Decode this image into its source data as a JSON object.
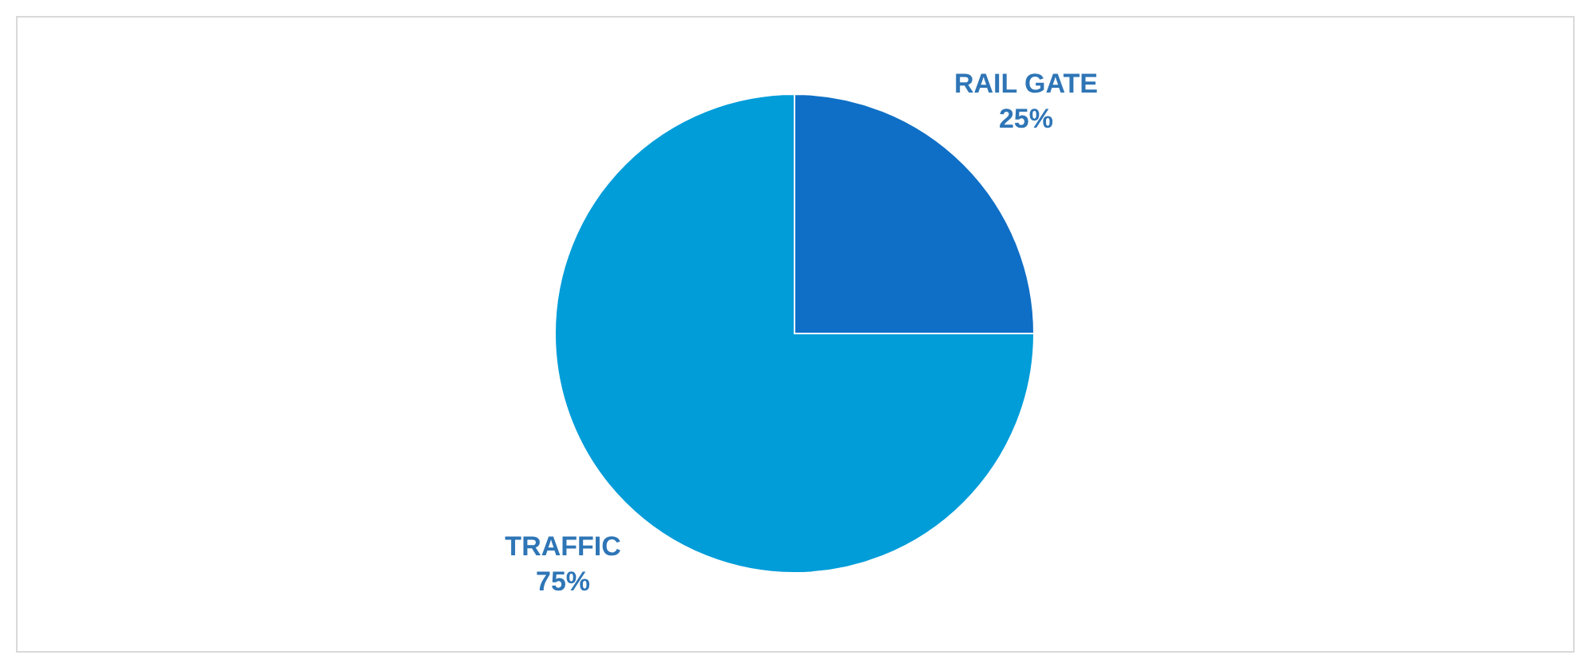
{
  "chart_data": {
    "type": "pie",
    "categories": [
      "RAIL GATE",
      "TRAFFIC"
    ],
    "values": [
      25,
      75
    ],
    "colors": [
      "#0f6fc6",
      "#009dd9"
    ],
    "value_labels": [
      "25%",
      "75%"
    ],
    "legend": false
  }
}
